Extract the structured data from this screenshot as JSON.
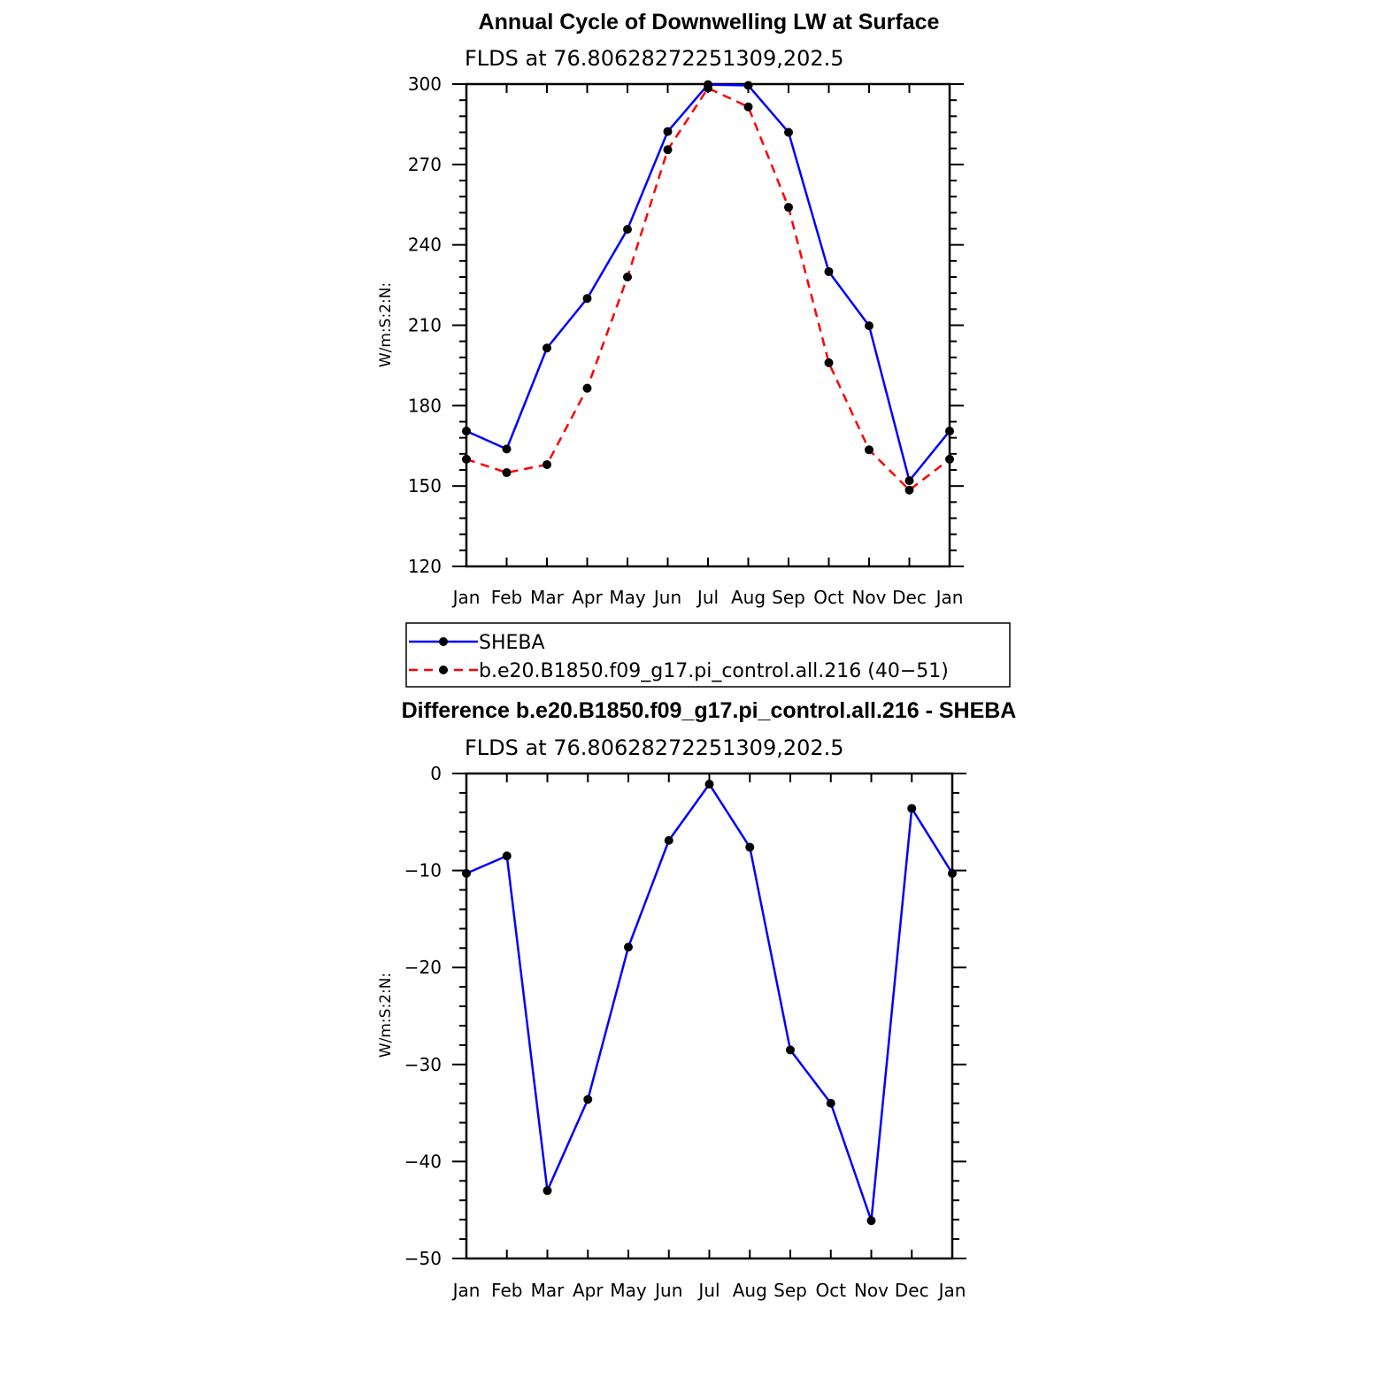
{
  "chart_data": [
    {
      "type": "line",
      "title": "Annual Cycle of Downwelling LW at Surface",
      "subtitle": "FLDS at 76.80628272251309,202.5",
      "xlabel": "",
      "ylabel": "W/m:S:2:N:",
      "categories": [
        "Jan",
        "Feb",
        "Mar",
        "Apr",
        "May",
        "Jun",
        "Jul",
        "Aug",
        "Sep",
        "Oct",
        "Nov",
        "Dec",
        "Jan"
      ],
      "ylim": [
        120,
        300
      ],
      "yticks": [
        120,
        150,
        180,
        210,
        240,
        270,
        300
      ],
      "grid": false,
      "legend_position": "below",
      "series": [
        {
          "name": "SHEBA",
          "color": "#0000ff",
          "style": "solid",
          "values": [
            170.5,
            163.8,
            201.5,
            220.0,
            245.8,
            282.3,
            299.8,
            299.5,
            282.0,
            230.0,
            209.8,
            152.0,
            170.5
          ]
        },
        {
          "name": "b.e20.B1850.f09_g17.pi_control.all.216 (40−51)",
          "color": "#ff0000",
          "style": "dashed",
          "values": [
            160.0,
            155.0,
            158.0,
            186.5,
            228.0,
            275.5,
            298.5,
            291.5,
            254.0,
            196.0,
            163.5,
            148.5,
            160.0
          ]
        }
      ]
    },
    {
      "type": "line",
      "title": "Difference b.e20.B1850.f09_g17.pi_control.all.216 - SHEBA",
      "subtitle": "FLDS at 76.80628272251309,202.5",
      "xlabel": "",
      "ylabel": "W/m:S:2:N:",
      "categories": [
        "Jan",
        "Feb",
        "Mar",
        "Apr",
        "May",
        "Jun",
        "Jul",
        "Aug",
        "Sep",
        "Oct",
        "Nov",
        "Dec",
        "Jan"
      ],
      "ylim": [
        -50,
        0
      ],
      "yticks": [
        -50,
        -40,
        -30,
        -20,
        -10,
        0
      ],
      "ytick_labels": [
        "−50",
        "−40",
        "−30",
        "−20",
        "−10",
        "0"
      ],
      "grid": false,
      "series": [
        {
          "color": "#0000ff",
          "style": "solid",
          "values": [
            -10.3,
            -8.5,
            -43.0,
            -33.6,
            -17.9,
            -6.9,
            -1.1,
            -7.6,
            -28.5,
            -34.0,
            -46.1,
            -3.6,
            -10.3
          ]
        }
      ]
    }
  ]
}
